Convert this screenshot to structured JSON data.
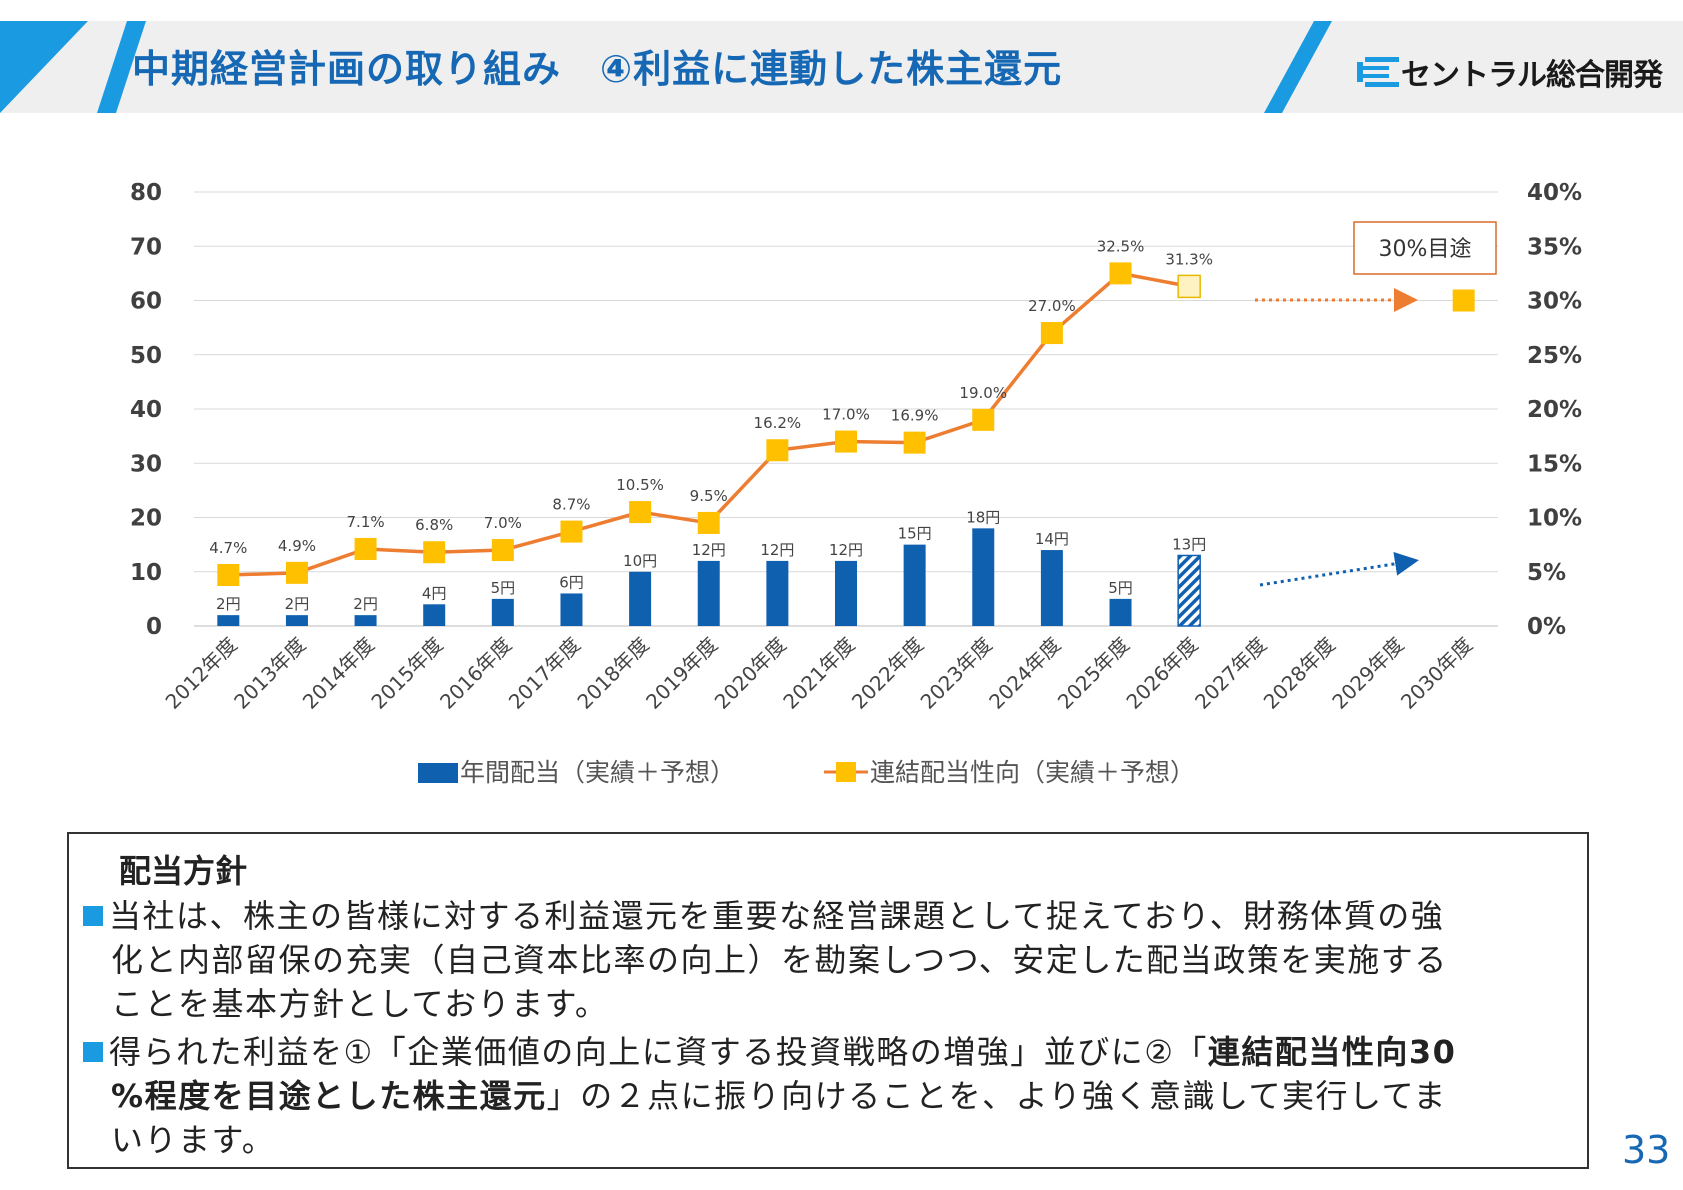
{
  "header": {
    "title": "中期経営計画の取り組み　④利益に連動した株主還元",
    "logo_text": "セントラル総合開発",
    "accent": "#1a9ae0",
    "title_color": "#1668b4",
    "logo_icon": "company-logo-icon"
  },
  "chart_data": {
    "type": "bar+line",
    "categories": [
      "2012年度",
      "2013年度",
      "2014年度",
      "2015年度",
      "2016年度",
      "2017年度",
      "2018年度",
      "2019年度",
      "2020年度",
      "2021年度",
      "2022年度",
      "2023年度",
      "2024年度",
      "2025年度",
      "2026年度",
      "2027年度",
      "2028年度",
      "2029年度",
      "2030年度"
    ],
    "y_left": {
      "ticks": [
        "0",
        "10",
        "20",
        "30",
        "40",
        "50",
        "60",
        "70",
        "80"
      ],
      "ylim": [
        0,
        80
      ]
    },
    "y_right": {
      "ticks": [
        "0%",
        "5%",
        "10%",
        "15%",
        "20%",
        "25%",
        "30%",
        "35%",
        "40%"
      ],
      "ylim": [
        0,
        40
      ]
    },
    "grid": true,
    "legend_position": "bottom",
    "series": [
      {
        "name": "年間配当（実績＋予想）",
        "type": "bar",
        "axis": "left",
        "color": "#1060b0",
        "values": [
          2,
          2,
          2,
          4,
          5,
          6,
          10,
          12,
          12,
          12,
          15,
          18,
          14,
          5,
          13,
          null,
          null,
          null,
          null
        ],
        "labels": [
          "2円",
          "2円",
          "2円",
          "4円",
          "5円",
          "6円",
          "10円",
          "12円",
          "12円",
          "12円",
          "15円",
          "18円",
          "14円",
          "5円",
          "13円",
          "",
          "",
          "",
          ""
        ],
        "forecast_index": 14
      },
      {
        "name": "連結配当性向（実績＋予想）",
        "type": "line",
        "axis": "right",
        "color": "#ed7d31",
        "marker_color": "#ffc000",
        "values": [
          4.7,
          4.9,
          7.1,
          6.8,
          7.0,
          8.7,
          10.5,
          9.5,
          16.2,
          17.0,
          16.9,
          19.0,
          27.0,
          32.5,
          31.3,
          null,
          null,
          null,
          30
        ],
        "labels": [
          "4.7%",
          "4.9%",
          "7.1%",
          "6.8%",
          "7.0%",
          "8.7%",
          "10.5%",
          "9.5%",
          "16.2%",
          "17.0%",
          "16.9%",
          "19.0%",
          "27.0%",
          "32.5%",
          "31.3%",
          "",
          "",
          "",
          ""
        ],
        "forecast_index": 14
      }
    ],
    "annotations": {
      "target_label": "30%目途"
    }
  },
  "policy": {
    "title": "配当方針",
    "para1_line1": "当社は、株主の皆様に対する利益還元を重要な経営課題として捉えており、財務体質の強",
    "para1_line2": "化と内部留保の充実（自己資本比率の向上）を勘案しつつ、安定した配当政策を実施する",
    "para1_line3": "ことを基本方針としております。",
    "para2_a": "得られた利益を①「企業価値の向上に資する投資戦略の増強」並びに②「",
    "para2_b": "連結配当性向30",
    "para2_c": "%程度を目途とした株主還元",
    "para2_d": "」の２点に振り向けることを、より強く意識して実行してま",
    "para2_e": "いります。"
  },
  "page_number": "33"
}
